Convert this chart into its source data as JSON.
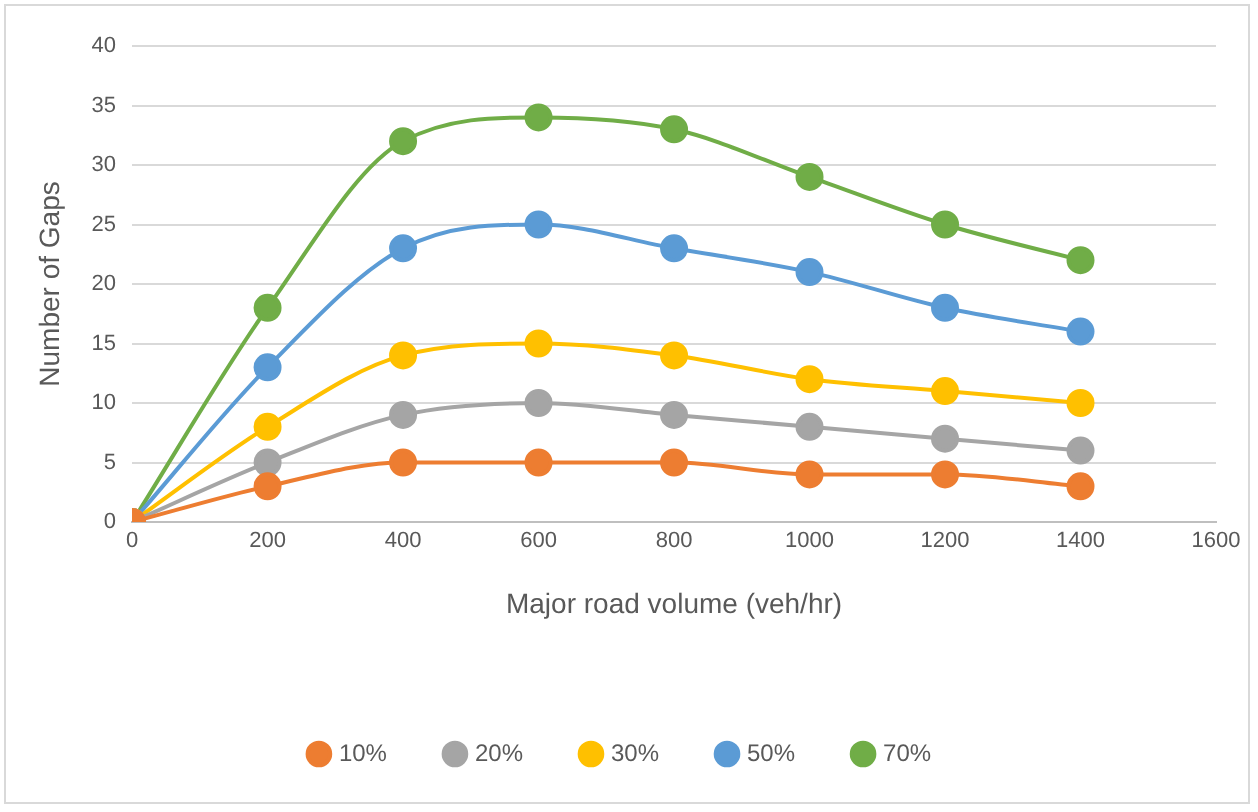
{
  "chart_data": {
    "type": "line",
    "xlabel": "Major road volume (veh/hr)",
    "ylabel": "Number of Gaps",
    "x": [
      0,
      200,
      400,
      600,
      800,
      1000,
      1200,
      1400
    ],
    "series": [
      {
        "name": "10%",
        "color": "#ed7d31",
        "values": [
          0,
          3,
          5,
          5,
          5,
          4,
          4,
          3
        ]
      },
      {
        "name": "20%",
        "color": "#a5a5a5",
        "values": [
          0,
          5,
          9,
          10,
          9,
          8,
          7,
          6
        ]
      },
      {
        "name": "30%",
        "color": "#ffc000",
        "values": [
          0,
          8,
          14,
          15,
          14,
          12,
          11,
          10
        ]
      },
      {
        "name": "50%",
        "color": "#5b9bd5",
        "values": [
          0,
          13,
          23,
          25,
          23,
          21,
          18,
          16
        ]
      },
      {
        "name": "70%",
        "color": "#70ad47",
        "values": [
          0,
          18,
          32,
          34,
          33,
          29,
          25,
          22
        ]
      }
    ],
    "xlim": [
      0,
      1600
    ],
    "xticks": [
      0,
      200,
      400,
      600,
      800,
      1000,
      1200,
      1400,
      1600
    ],
    "ylim": [
      0,
      40
    ],
    "yticks": [
      0,
      5,
      10,
      15,
      20,
      25,
      30,
      35,
      40
    ],
    "grid": "y",
    "legend": "bottom",
    "marker": "circle",
    "line_style": "solid"
  }
}
